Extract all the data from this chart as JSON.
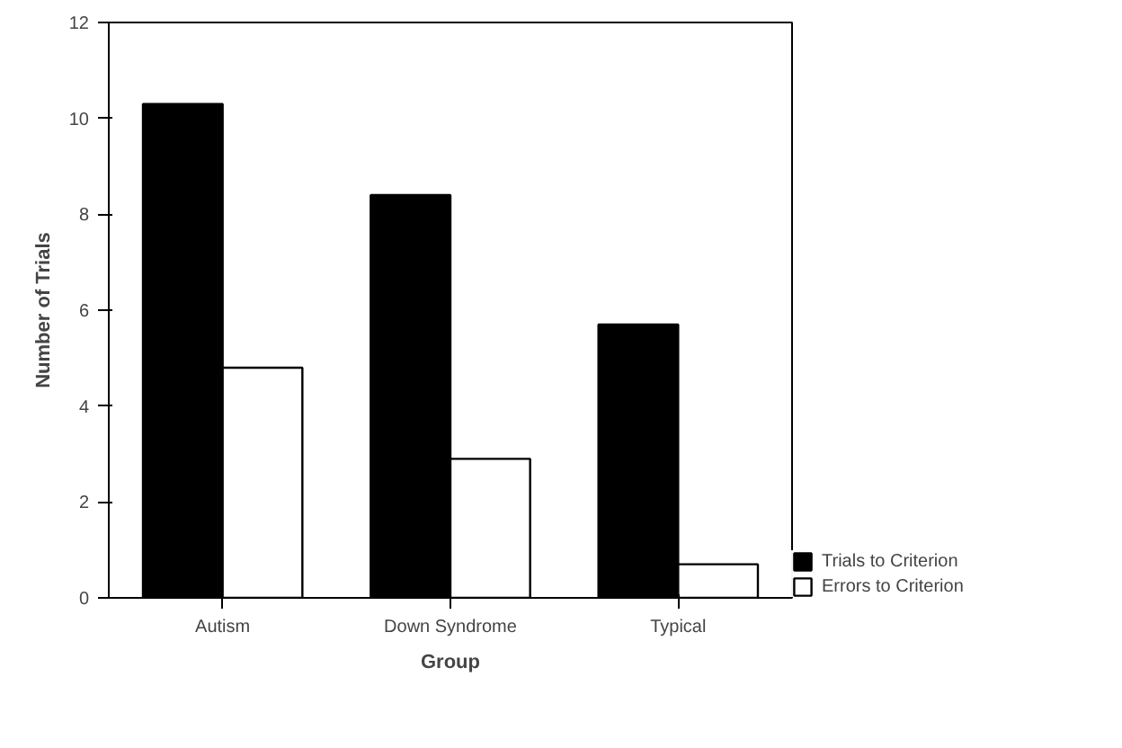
{
  "chart_data": {
    "type": "bar",
    "xlabel": "Group",
    "ylabel": "Number of Trials",
    "categories": [
      "Autism",
      "Down Syndrome",
      "Typical"
    ],
    "series": [
      {
        "name": "Trials to Criterion",
        "color": "#000000",
        "values": [
          10.3,
          8.4,
          5.7
        ]
      },
      {
        "name": "Errors to Criterion",
        "color": "#ffffff",
        "values": [
          4.8,
          2.9,
          0.7
        ]
      }
    ],
    "ylim": [
      0,
      12
    ],
    "yticks": [
      0,
      2,
      4,
      6,
      8,
      10,
      12
    ],
    "legend": "bottom right"
  }
}
